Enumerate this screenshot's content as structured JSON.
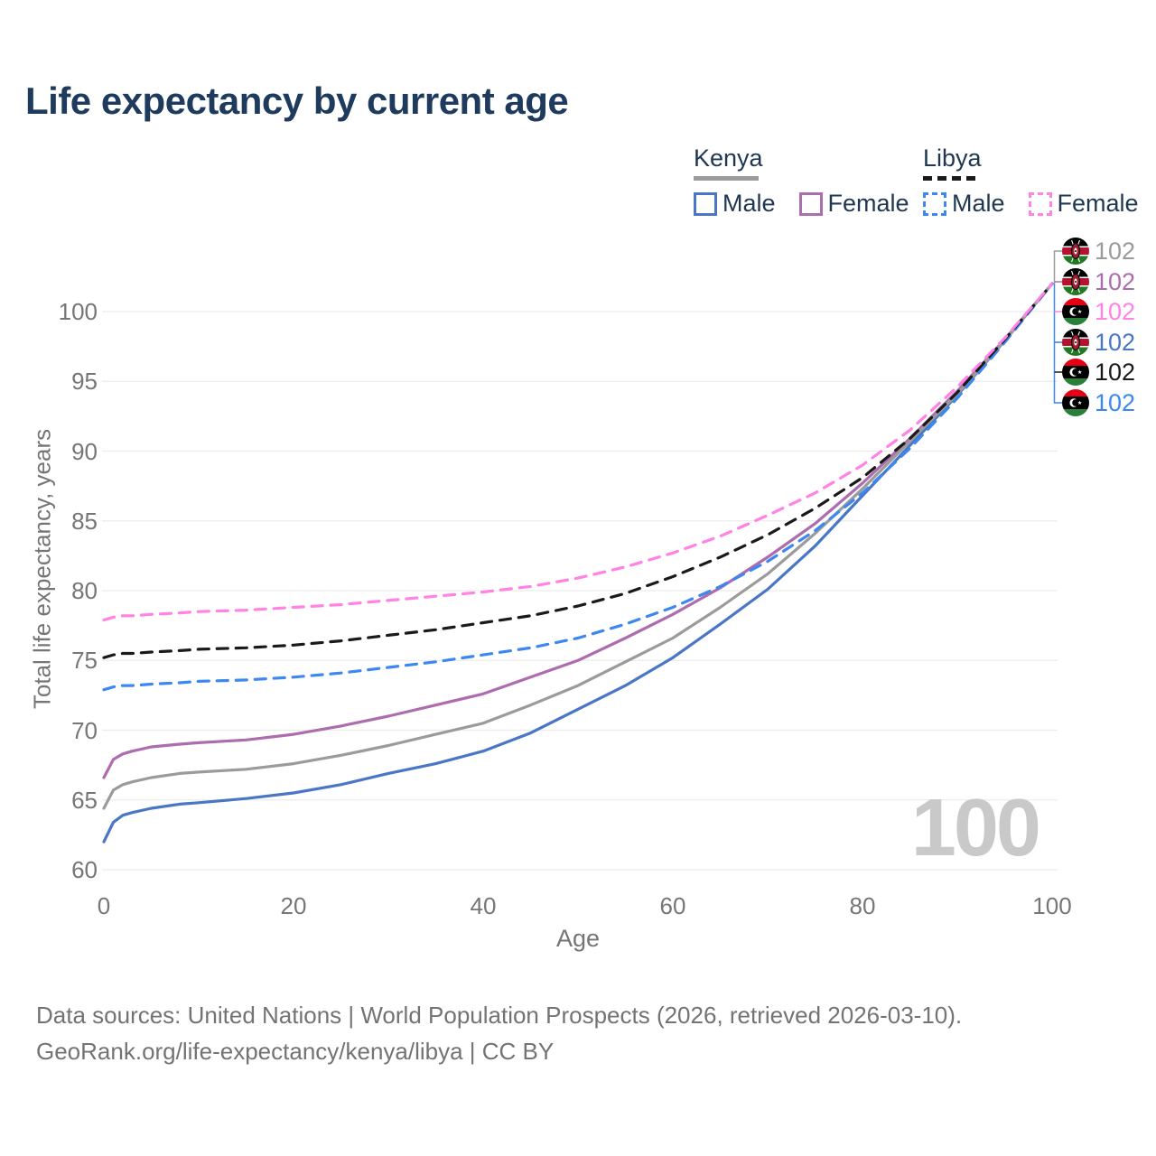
{
  "title": "Life expectancy by current age",
  "watermark": "100",
  "legend": {
    "kenya": {
      "label": "Kenya",
      "male": "Male",
      "female": "Female",
      "underline_color": "#9b9b9b",
      "male_color": "#4a76c6",
      "female_color": "#ad6cae"
    },
    "libya": {
      "label": "Libya",
      "male": "Male",
      "female": "Female",
      "underline_color": "#1a1a1a",
      "male_color": "#3d87f0",
      "female_color": "#ff82e4"
    }
  },
  "chart_data": {
    "type": "line",
    "title": "Life expectancy by current age",
    "xlabel": "Age",
    "ylabel": "Total life expectancy, years",
    "x_ticks": [
      0,
      20,
      40,
      60,
      80,
      100
    ],
    "y_ticks": [
      60,
      65,
      70,
      75,
      80,
      85,
      90,
      95,
      100
    ],
    "xlim": [
      0,
      100
    ],
    "ylim": [
      58.5,
      103.5
    ],
    "grid": "horizontal-only",
    "x": [
      0,
      1,
      2,
      3,
      5,
      8,
      10,
      15,
      20,
      25,
      30,
      35,
      40,
      45,
      50,
      55,
      60,
      65,
      70,
      75,
      80,
      85,
      90,
      95,
      100
    ],
    "series": [
      {
        "name": "Kenya Male",
        "country": "Kenya",
        "sex": "Male",
        "color": "#4a76c6",
        "dash": "solid",
        "values": [
          62.0,
          63.4,
          63.9,
          64.1,
          64.4,
          64.7,
          64.8,
          65.1,
          65.5,
          66.1,
          66.9,
          67.6,
          68.5,
          69.8,
          71.5,
          73.2,
          75.2,
          77.6,
          80.1,
          83.2,
          86.8,
          90.4,
          94.0,
          97.9,
          102
        ]
      },
      {
        "name": "Kenya Female",
        "country": "Kenya",
        "sex": "Female",
        "color": "#ad6cae",
        "dash": "solid",
        "values": [
          66.6,
          67.9,
          68.3,
          68.5,
          68.8,
          69.0,
          69.1,
          69.3,
          69.7,
          70.3,
          71.0,
          71.8,
          72.6,
          73.8,
          75.0,
          76.6,
          78.3,
          80.2,
          82.4,
          84.8,
          87.7,
          90.9,
          94.3,
          98.0,
          102
        ]
      },
      {
        "name": "Kenya Both sexes",
        "country": "Kenya",
        "sex": "Both",
        "color": "#9b9b9b",
        "dash": "solid",
        "values": [
          64.4,
          65.7,
          66.1,
          66.3,
          66.6,
          66.9,
          67.0,
          67.2,
          67.6,
          68.2,
          68.9,
          69.7,
          70.5,
          71.8,
          73.2,
          74.9,
          76.6,
          78.8,
          81.2,
          84.1,
          87.3,
          90.7,
          94.1,
          97.9,
          102
        ]
      },
      {
        "name": "Libya Male",
        "country": "Libya",
        "sex": "Male",
        "color": "#3d87f0",
        "dash": "dashed",
        "values": [
          72.9,
          73.1,
          73.2,
          73.2,
          73.3,
          73.4,
          73.5,
          73.6,
          73.8,
          74.1,
          74.5,
          74.9,
          75.4,
          75.9,
          76.6,
          77.6,
          78.8,
          80.3,
          82.1,
          84.3,
          87.0,
          90.2,
          93.8,
          97.8,
          102
        ]
      },
      {
        "name": "Libya Both sexes",
        "country": "Libya",
        "sex": "Both",
        "color": "#1a1a1a",
        "dash": "dashed",
        "values": [
          75.2,
          75.4,
          75.5,
          75.5,
          75.6,
          75.7,
          75.8,
          75.9,
          76.1,
          76.4,
          76.8,
          77.2,
          77.7,
          78.2,
          78.9,
          79.8,
          81.0,
          82.4,
          84.0,
          85.9,
          88.1,
          90.9,
          94.2,
          98.0,
          102
        ]
      },
      {
        "name": "Libya Female",
        "country": "Libya",
        "sex": "Female",
        "color": "#ff82e4",
        "dash": "dashed",
        "values": [
          77.9,
          78.1,
          78.2,
          78.2,
          78.3,
          78.4,
          78.5,
          78.6,
          78.8,
          79.0,
          79.3,
          79.6,
          79.9,
          80.3,
          80.9,
          81.7,
          82.7,
          83.9,
          85.4,
          87.0,
          89.0,
          91.5,
          94.6,
          98.1,
          102
        ]
      }
    ]
  },
  "end_labels": [
    {
      "flag": "kenya",
      "value": "102",
      "color": "#9b9b9b"
    },
    {
      "flag": "kenya",
      "value": "102",
      "color": "#ad6cae"
    },
    {
      "flag": "libya",
      "value": "102",
      "color": "#ff82e4"
    },
    {
      "flag": "kenya",
      "value": "102",
      "color": "#4a76c6"
    },
    {
      "flag": "libya",
      "value": "102",
      "color": "#1a1a1a"
    },
    {
      "flag": "libya",
      "value": "102",
      "color": "#3d87f0"
    }
  ],
  "footer": {
    "line1": "Data sources: United Nations | World Population Prospects (2026, retrieved 2026-03-10).",
    "line2": "GeoRank.org/life-expectancy/kenya/libya | CC BY"
  }
}
